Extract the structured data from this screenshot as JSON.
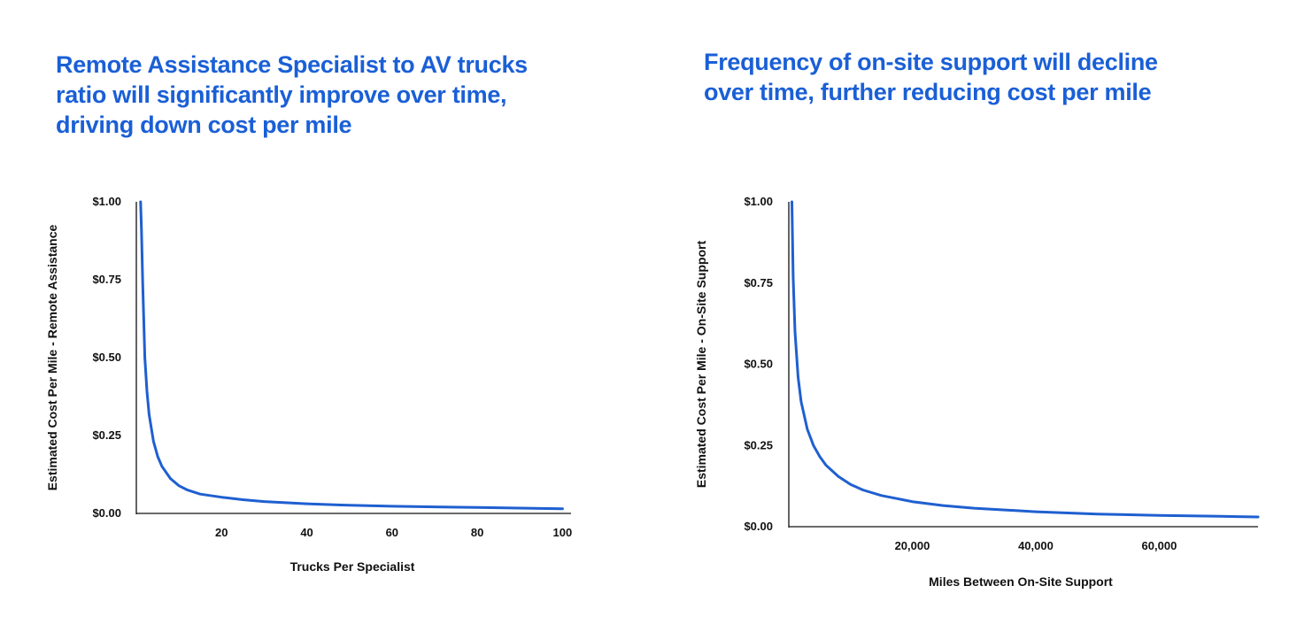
{
  "chart_data": [
    {
      "type": "line",
      "title": "Remote Assistance Specialist to AV trucks ratio will significantly improve over time, driving down cost per mile",
      "xlabel": "Trucks Per Specialist",
      "ylabel": "Estimated Cost Per Mile - Remote Assistance",
      "xlim": [
        0,
        102
      ],
      "ylim": [
        0,
        1.0
      ],
      "x_ticks": [
        20,
        40,
        60,
        80,
        100
      ],
      "x_tick_labels": [
        "20",
        "40",
        "60",
        "80",
        "100"
      ],
      "y_ticks": [
        0,
        0.25,
        0.5,
        0.75,
        1.0
      ],
      "y_tick_labels": [
        "$0.00",
        "$0.25",
        "$0.50",
        "$0.75",
        "$1.00"
      ],
      "grid": false,
      "color": "#1f5fd0",
      "series": [
        {
          "name": "Cost per mile",
          "x": [
            1,
            1.2,
            1.5,
            2,
            2.5,
            3,
            4,
            5,
            6,
            8,
            10,
            12,
            15,
            20,
            25,
            30,
            40,
            50,
            60,
            70,
            80,
            90,
            100
          ],
          "y": [
            1.0,
            0.91,
            0.74,
            0.5,
            0.392,
            0.318,
            0.232,
            0.183,
            0.151,
            0.112,
            0.089,
            0.075,
            0.062,
            0.052,
            0.044,
            0.038,
            0.031,
            0.026,
            0.023,
            0.021,
            0.019,
            0.017,
            0.015
          ]
        }
      ]
    },
    {
      "type": "line",
      "title": "Frequency of on-site support will decline over time, further reducing cost per mile",
      "xlabel": "Miles Between On-Site Support",
      "ylabel": "Estimated Cost Per Mile - On-Site Support",
      "xlim": [
        0,
        76000
      ],
      "ylim": [
        0,
        1.0
      ],
      "x_ticks": [
        20000,
        40000,
        60000
      ],
      "x_tick_labels": [
        "20,000",
        "40,000",
        "60,000"
      ],
      "y_ticks": [
        0,
        0.25,
        0.5,
        0.75,
        1.0
      ],
      "y_tick_labels": [
        "$0.00",
        "$0.25",
        "$0.50",
        "$0.75",
        "$1.00"
      ],
      "grid": false,
      "color": "#1f5fd0",
      "series": [
        {
          "name": "Cost per mile",
          "x": [
            500,
            700,
            1000,
            1500,
            2000,
            3000,
            4000,
            5000,
            6000,
            8000,
            10000,
            12000,
            15000,
            20000,
            25000,
            30000,
            40000,
            50000,
            60000,
            70000,
            76000
          ],
          "y": [
            1.0,
            0.77,
            0.6,
            0.46,
            0.385,
            0.3,
            0.25,
            0.216,
            0.19,
            0.155,
            0.13,
            0.113,
            0.096,
            0.077,
            0.065,
            0.057,
            0.046,
            0.039,
            0.035,
            0.032,
            0.03
          ]
        }
      ]
    }
  ]
}
